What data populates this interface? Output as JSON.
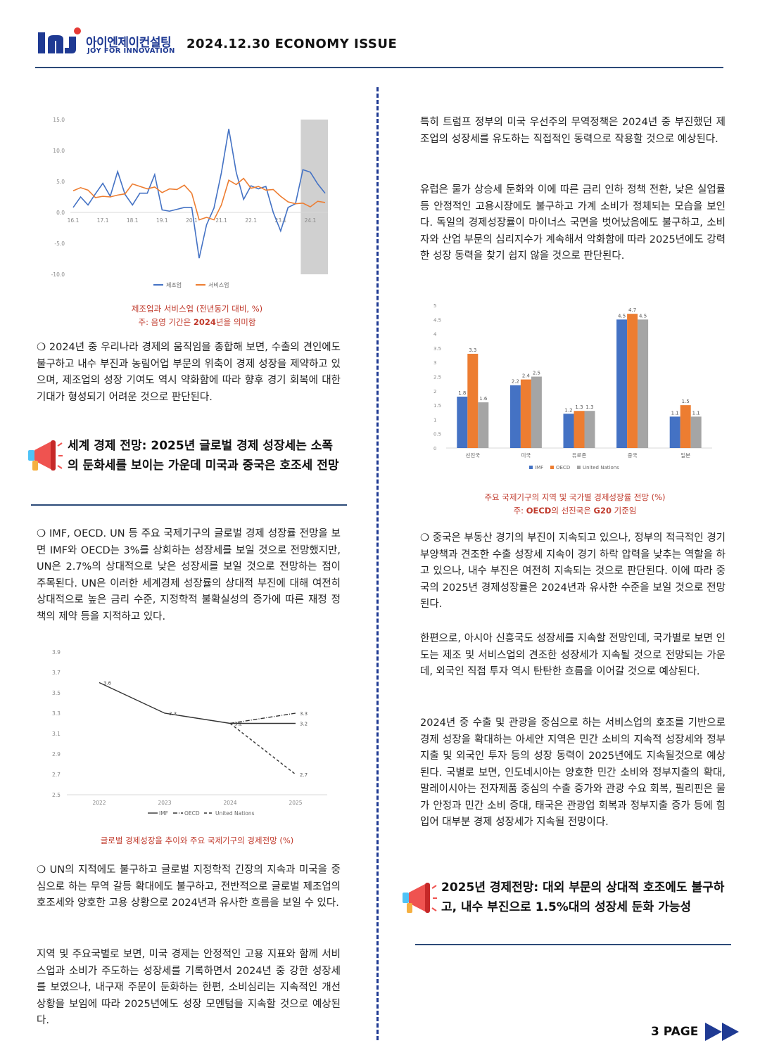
{
  "header": {
    "logo_letters": "InJ",
    "logo_korean": "아이엔제이컨설팅",
    "logo_english": "JOY FOR INNOVATION",
    "issue_title": "2024.12.30 ECONOMY ISSUE"
  },
  "left": {
    "chart1_caption_line1": "제조업과 서비스업 (전년동기 대비, %)",
    "chart1_caption_line2_a": "주: 음영 기간은 ",
    "chart1_caption_line2_b": "2024",
    "chart1_caption_line2_c": "년을 의미함",
    "para1": "❍ 2024년 중 우리나라 경제의 움직임을 종합해 보면, 수출의 견인에도 불구하고 내수 부진과 농림어업 부문의 위축이 경제 성장을 제약하고 있으며, 제조업의 성장 기여도 역시 약화함에 따라 향후 경기 회복에 대한 기대가 형성되기 어려운 것으로 판단된다.",
    "section1_title": "세계 경제 전망: 2025년 글로벌 경제 성장세는 소폭의 둔화세를 보이는 가운데 미국과 중국은 호조세 전망",
    "para2": "❍ IMF, OECD. UN 등 주요 국제기구의 글로벌 경제 성장률 전망을 보면 IMF와 OECD는 3%를 상회하는 성장세를 보일 것으로 전망했지만, UN은 2.7%의 상대적으로 낮은 성장세를 보일 것으로 전망하는 점이 주목된다. UN은 이러한 세계경제 성장률의 상대적 부진에 대해 여전히 상대적으로 높은 금리 수준, 지정학적 불확실성의 증가에 따른 재정 정책의 제약 등을 지적하고 있다.",
    "chart2_caption": "글로벌 경제성장을 추이와 주요 국제기구의 경제전망 (%)",
    "para3": "❍ UN의 지적에도 불구하고 글로벌 지정학적 긴장의 지속과 미국을 중심으로 하는 무역 갈등 확대에도 불구하고, 전반적으로 글로벌 제조업의 호조세와 양호한 고용 상황으로 2024년과 유사한 흐름을 보일 수 있다.",
    "para4": "지역 및 주요국별로 보면, 미국 경제는 안정적인 고용 지표와 함께 서비스업과 소비가 주도하는 성장세를 기록하면서 2024년 중 강한 성장세를 보였으나, 내구재 주문이 둔화하는 한편, 소비심리는 지속적인 개선 상황을 보임에 따라 2025년에도 성장 모멘텀을 지속할 것으로 예상된다."
  },
  "right": {
    "para1": "특히 트럼프 정부의 미국 우선주의 무역정책은 2024년 중 부진했던 제조업의 성장세를 유도하는 직접적인 동력으로 작용할 것으로 예상된다.",
    "para2": "유럽은 물가 상승세 둔화와 이에 따른 금리 인하 정책 전환, 낮은 실업률 등 안정적인 고용시장에도 불구하고 가계 소비가 정체되는 모습을 보인다. 독일의 경제성장률이 마이너스 국면을 벗어났음에도 불구하고, 소비자와 산업 부문의 심리지수가 계속해서 악화함에 따라 2025년에도 강력한 성장 동력을 찾기 쉽지 않을 것으로 판단된다.",
    "chart3_caption_line1": "주요 국제기구의 지역 및 국가별 경제성장률 전망 (%)",
    "chart3_caption_line2_a": "주: ",
    "chart3_caption_line2_b": "OECD",
    "chart3_caption_line2_c": "의 선진국은 ",
    "chart3_caption_line2_d": "G20",
    "chart3_caption_line2_e": " 기준임",
    "para3": "❍ 중국은 부동산 경기의 부진이 지속되고 있으나, 정부의 적극적인 경기 부양책과 견조한 수출 성장세 지속이 경기 하락 압력을 낮추는 역할을 하고 있으나, 내수 부진은 여전히 지속되는 것으로 판단된다. 이에 따라 중국의 2025년 경제성장률은 2024년과 유사한 수준을 보일 것으로 전망된다.",
    "para4": "한편으로, 아시아 신흥국도 성장세를 지속할 전망인데, 국가별로 보면 인도는 제조 및 서비스업의 견조한 성장세가 지속될 것으로 전망되는 가운데, 외국인 직접 투자 역시 탄탄한 흐름을 이어갈 것으로 예상된다.",
    "para5": "2024년 중 수출 및 관광을 중심으로 하는 서비스업의 호조를 기반으로 경제 성장을 확대하는 아세안 지역은 민간 소비의 지속적 성장세와 정부지출 및 외국인 투자 등의 성장 동력이 2025년에도 지속될것으로 예상된다. 국별로 보면, 인도네시아는 양호한 민간 소비와 정부지출의 확대, 말레이시아는 전자제품 중심의 수출 증가와 관광 수요 회복, 필리핀은 물가 안정과 민간 소비 증대, 태국은 관광업 회복과 정부지출 증가 등에 힘입어 대부분 경제 성장세가 지속될 전망이다.",
    "section2_title": "2025년 경제전망: 대외 부문의 상대적 호조에도 불구하고, 내수 부진으로 1.5%대의 성장세 둔화 가능성"
  },
  "footer": {
    "page_label": "3 PAGE"
  },
  "colors": {
    "blue": "#4472c4",
    "orange": "#ed7d31",
    "gray": "#a5a5a5",
    "accent_red": "#c0392b",
    "navy": "#2c4a78"
  },
  "icons": {
    "megaphone": "megaphone-icon",
    "arrows": "double-arrow-icon"
  },
  "chart_data": [
    {
      "type": "line",
      "y_ticks": [
        "15.0",
        "10.0",
        "5.0",
        "0.0",
        "-5.0",
        "-10.0"
      ],
      "x_ticks": [
        "16.1",
        "17.1",
        "18.1",
        "19.1",
        "20.1",
        "21.1",
        "22.1",
        "23.1",
        "24.1"
      ],
      "ylim": [
        -10,
        15
      ],
      "shaded": "2024",
      "series": [
        {
          "name": "제조업",
          "color": "#4472c4",
          "values": [
            0.8,
            2.5,
            1.2,
            3.0,
            4.7,
            2.6,
            6.6,
            2.9,
            1.2,
            3.1,
            3.1,
            6.1,
            0.4,
            0.2,
            0.5,
            0.8,
            0.8,
            -7.4,
            -2.0,
            0.7,
            6.4,
            13.5,
            6.5,
            2.1,
            4.3,
            3.8,
            4.2,
            0.0,
            -3.0,
            0.8,
            1.4,
            6.9,
            6.5,
            4.6,
            3.1
          ]
        },
        {
          "name": "서비스업",
          "color": "#ed7d31",
          "values": [
            3.5,
            4.0,
            3.6,
            2.4,
            2.6,
            2.5,
            2.8,
            3.0,
            4.6,
            4.2,
            3.8,
            4.1,
            3.2,
            3.8,
            3.7,
            4.4,
            3.1,
            -1.2,
            -0.8,
            -1.2,
            1.2,
            5.2,
            4.5,
            5.5,
            3.9,
            4.2,
            3.6,
            3.7,
            2.6,
            1.7,
            1.4,
            1.5,
            0.9,
            1.8,
            1.6
          ]
        }
      ],
      "legend": [
        "제조업",
        "서비스업"
      ]
    },
    {
      "type": "line",
      "categories": [
        "2022",
        "2023",
        "2024",
        "2025"
      ],
      "y_ticks": [
        "3.9",
        "3.7",
        "3.5",
        "3.3",
        "3.1",
        "2.9",
        "2.7",
        "2.5"
      ],
      "ylim": [
        2.5,
        3.9
      ],
      "series": [
        {
          "name": "IMF",
          "values": [
            3.6,
            3.3,
            3.2,
            3.2
          ],
          "labels": [
            "3.6",
            "3.3",
            "3.2",
            "3.2"
          ]
        },
        {
          "name": "OECD",
          "values": [
            null,
            null,
            3.2,
            3.3
          ],
          "labels": [
            "",
            "",
            "",
            "3.3"
          ]
        },
        {
          "name": "United Nations",
          "values": [
            null,
            null,
            3.2,
            2.7
          ],
          "labels": [
            "",
            "",
            "",
            "2.7"
          ]
        }
      ]
    },
    {
      "type": "bar",
      "categories": [
        "선진국",
        "미국",
        "유로존",
        "중국",
        "일본"
      ],
      "y_ticks": [
        "5",
        "4.5",
        "4",
        "3.5",
        "3",
        "2.5",
        "2",
        "1.5",
        "1",
        "0.5",
        "0"
      ],
      "ylim": [
        0,
        5
      ],
      "series": [
        {
          "name": "IMF",
          "color": "#4472c4",
          "values": [
            1.8,
            2.2,
            1.2,
            4.5,
            1.1
          ],
          "labels": [
            "1.8",
            "2.2",
            "1.2",
            "4.5",
            "1.1"
          ]
        },
        {
          "name": "OECD",
          "color": "#ed7d31",
          "values": [
            3.3,
            2.4,
            1.3,
            4.7,
            1.5
          ],
          "labels": [
            "3.3",
            "2.4",
            "1.3",
            "4.7",
            "1.5"
          ]
        },
        {
          "name": "United Nations",
          "color": "#a5a5a5",
          "values": [
            1.6,
            2.5,
            1.3,
            4.5,
            1.1
          ],
          "labels": [
            "1.6",
            "2.5",
            "1.3",
            "4.5",
            "1.1"
          ]
        }
      ]
    }
  ]
}
